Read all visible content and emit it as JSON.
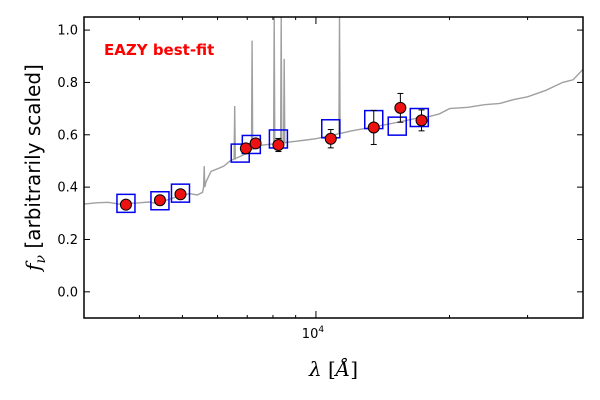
{
  "chart_data": {
    "type": "scatter",
    "annotation": "EAZY best-fit",
    "annotation_color": "#ff0000",
    "xlabel": "λ [Å]",
    "ylabel": "f_ν [arbitrarily scaled]",
    "x_scale": "log",
    "xlim": [
      3000,
      40000
    ],
    "ylim": [
      -0.1,
      1.05
    ],
    "yticks": [
      0.0,
      0.2,
      0.4,
      0.6,
      0.8,
      1.0
    ],
    "ytick_labels": [
      "0.0",
      "0.2",
      "0.4",
      "0.6",
      "0.8",
      "1.0"
    ],
    "xticks": [
      10000
    ],
    "xtick_labels": [
      "10^4"
    ],
    "grid": false,
    "colors": {
      "template_line": "#a0a0a0",
      "model_box": "#0000ee",
      "observed_fill": "#ee1111",
      "observed_edge": "#000000",
      "errorbar": "#000000"
    },
    "observed_photometry": [
      {
        "wavelength": 3730,
        "flux": 0.333,
        "err": 0.012
      },
      {
        "wavelength": 4450,
        "flux": 0.35,
        "err": 0.012
      },
      {
        "wavelength": 4950,
        "flux": 0.373,
        "err": 0.012
      },
      {
        "wavelength": 6950,
        "flux": 0.548,
        "err": 0.015
      },
      {
        "wavelength": 7310,
        "flux": 0.567,
        "err": 0.015
      },
      {
        "wavelength": 8230,
        "flux": 0.561,
        "err": 0.025
      },
      {
        "wavelength": 10800,
        "flux": 0.585,
        "err": 0.035
      },
      {
        "wavelength": 13500,
        "flux": 0.628,
        "err": 0.065
      },
      {
        "wavelength": 15500,
        "flux": 0.703,
        "err": 0.055
      },
      {
        "wavelength": 17300,
        "flux": 0.655,
        "err": 0.04
      }
    ],
    "model_photometry": [
      {
        "wavelength": 3730,
        "flux": 0.338
      },
      {
        "wavelength": 4450,
        "flux": 0.348
      },
      {
        "wavelength": 4950,
        "flux": 0.377
      },
      {
        "wavelength": 6750,
        "flux": 0.53
      },
      {
        "wavelength": 7150,
        "flux": 0.563
      },
      {
        "wavelength": 8230,
        "flux": 0.584
      },
      {
        "wavelength": 10800,
        "flux": 0.623
      },
      {
        "wavelength": 13500,
        "flux": 0.658
      },
      {
        "wavelength": 15250,
        "flux": 0.633
      },
      {
        "wavelength": 17100,
        "flux": 0.666
      }
    ],
    "template_spectrum": {
      "wavelength": [
        3000,
        3200,
        3400,
        3600,
        3800,
        4000,
        4200,
        4400,
        4600,
        4800,
        5000,
        5200,
        5400,
        5550,
        5650,
        5800,
        6000,
        6200,
        6400,
        6600,
        6800,
        7000,
        7200,
        7500,
        8000,
        8500,
        9000,
        9500,
        10000,
        11000,
        12000,
        13000,
        14000,
        15000,
        16000,
        17000,
        18000,
        19000,
        20000,
        22000,
        24000,
        26000,
        28000,
        30000,
        33000,
        36000,
        38000,
        40000
      ],
      "flux": [
        0.335,
        0.34,
        0.342,
        0.335,
        0.338,
        0.34,
        0.343,
        0.337,
        0.35,
        0.36,
        0.37,
        0.375,
        0.37,
        0.38,
        0.42,
        0.46,
        0.47,
        0.48,
        0.5,
        0.51,
        0.52,
        0.53,
        0.545,
        0.56,
        0.565,
        0.57,
        0.575,
        0.58,
        0.585,
        0.6,
        0.615,
        0.625,
        0.635,
        0.645,
        0.655,
        0.665,
        0.67,
        0.68,
        0.7,
        0.705,
        0.715,
        0.72,
        0.735,
        0.745,
        0.77,
        0.8,
        0.81,
        0.85
      ],
      "emission_lines": [
        {
          "wavelength": 5600,
          "peak": 0.48
        },
        {
          "wavelength": 6560,
          "peak": 0.71
        },
        {
          "wavelength": 7180,
          "peak": 0.96
        },
        {
          "wavelength": 8050,
          "peak": 1.05
        },
        {
          "wavelength": 8350,
          "peak": 1.05
        },
        {
          "wavelength": 8480,
          "peak": 0.89
        },
        {
          "wavelength": 11300,
          "peak": 1.05
        }
      ]
    }
  }
}
